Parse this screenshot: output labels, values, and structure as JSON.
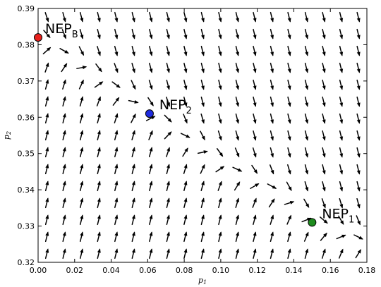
{
  "chart_data": {
    "type": "quiver",
    "xlabel": "p",
    "xlabel_sub": "1",
    "ylabel": "p",
    "ylabel_sub": "2",
    "xlim": [
      0.0,
      0.18
    ],
    "ylim": [
      0.32,
      0.39
    ],
    "xticks": [
      "0.00",
      "0.02",
      "0.04",
      "0.06",
      "0.08",
      "0.10",
      "0.12",
      "0.14",
      "0.16",
      "0.18"
    ],
    "yticks": [
      "0.32",
      "0.33",
      "0.34",
      "0.35",
      "0.36",
      "0.37",
      "0.38",
      "0.39"
    ],
    "grid": false,
    "equilibria": [
      {
        "label": "NEP",
        "sub": "B",
        "x": 0.0,
        "y": 0.382,
        "color": "#e8201c"
      },
      {
        "label": "NEP",
        "sub": "2",
        "x": 0.061,
        "y": 0.361,
        "color": "#1f2be0"
      },
      {
        "label": "NEP",
        "sub": "1",
        "x": 0.15,
        "y": 0.331,
        "color": "#1e8c1e"
      }
    ],
    "field": {
      "nx": 19,
      "ny": 15,
      "description_of_flow": "vectors converge horizontally toward a curve running from NEP_B through NEP_2 to NEP_1; mostly vertical elsewhere"
    }
  }
}
